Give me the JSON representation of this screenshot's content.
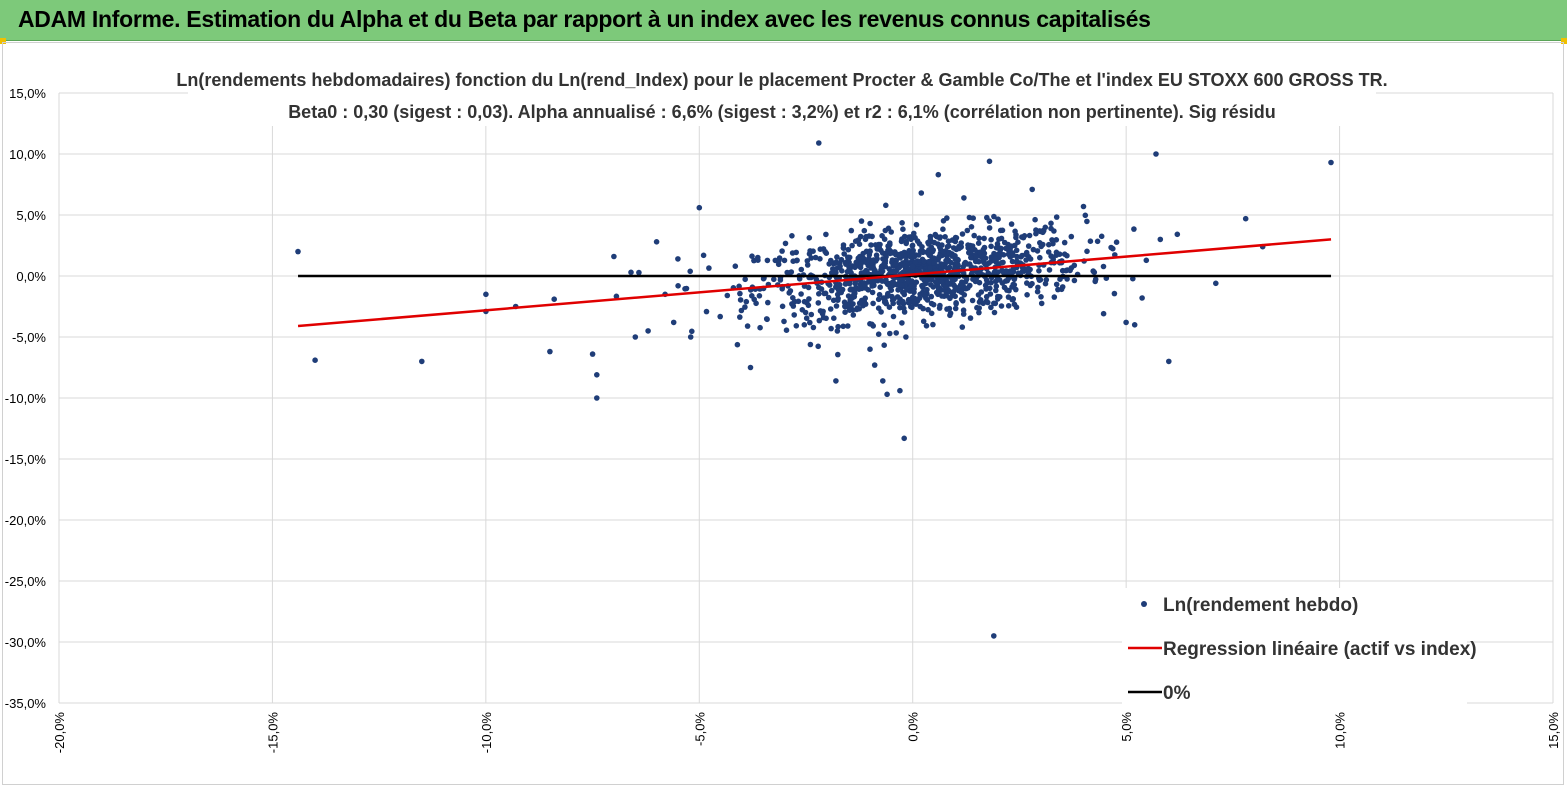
{
  "banner": {
    "title": "ADAM Informe. Estimation du Alpha et du Beta par rapport à un index avec les revenus connus capitalisés"
  },
  "colors": {
    "banner_bg": "#7dc97a",
    "scatter": "#1f3d78",
    "regression": "#e00000",
    "zero_line": "#000000",
    "grid": "#d9d9d9"
  },
  "chart_data": {
    "type": "scatter",
    "title_line1": "Ln(rendements hebdomadaires) fonction du Ln(rend_Index) pour le placement Procter & Gamble Co/The et l'index EU STOXX 600 GROSS TR.",
    "title_line2": "Beta0 : 0,30 (sigest : 0,03). Alpha annualisé : 6,6% (sigest : 3,2%) et r2 : 6,1% (corrélation non pertinente). Sig résidu",
    "xlim": [
      -0.2,
      0.15
    ],
    "ylim": [
      -0.35,
      0.15
    ],
    "x_ticks": [
      "-20,0%",
      "-15,0%",
      "-10,0%",
      "-5,0%",
      "0,0%",
      "5,0%",
      "10,0%",
      "15,0%"
    ],
    "y_ticks": [
      "15,0%",
      "10,0%",
      "5,0%",
      "0,0%",
      "-5,0%",
      "-10,0%",
      "-15,0%",
      "-20,0%",
      "-25,0%",
      "-30,0%",
      "-35,0%"
    ],
    "grid": true,
    "legend_position": "bottom-right",
    "legend": {
      "scatter": "Ln(rendement hebdo)",
      "regression": "Regression linéaire (actif vs index)",
      "zero": "0%"
    },
    "regression_line": {
      "x": [
        -0.144,
        0.098
      ],
      "y": [
        -0.041,
        0.03
      ]
    },
    "zero_line": {
      "x": [
        -0.144,
        0.098
      ],
      "y": [
        0.0,
        0.0
      ]
    },
    "outliers": {
      "x": [
        -0.144,
        -0.14,
        -0.115,
        -0.1,
        -0.1,
        -0.093,
        -0.085,
        -0.084,
        -0.075,
        -0.074,
        -0.074,
        -0.07,
        -0.066,
        -0.065,
        -0.062,
        -0.06,
        -0.058,
        -0.056,
        -0.055,
        -0.052,
        -0.05,
        -0.049,
        -0.038,
        -0.022,
        -0.018,
        -0.012,
        -0.01,
        -0.007,
        -0.006,
        -0.003,
        -0.002,
        0.002,
        0.006,
        0.012,
        0.018,
        0.019,
        0.028,
        0.04,
        0.05,
        0.052,
        0.057,
        0.058,
        0.06,
        0.071,
        0.078,
        0.082,
        0.098
      ],
      "y": [
        0.02,
        -0.069,
        -0.07,
        -0.015,
        -0.029,
        -0.025,
        -0.062,
        -0.019,
        -0.064,
        -0.081,
        -0.1,
        0.016,
        0.003,
        -0.05,
        -0.045,
        0.028,
        -0.015,
        -0.038,
        0.014,
        -0.05,
        0.056,
        0.017,
        -0.075,
        0.109,
        -0.086,
        0.045,
        -0.06,
        -0.086,
        -0.097,
        -0.094,
        -0.133,
        0.068,
        0.083,
        0.064,
        0.094,
        -0.295,
        0.071,
        0.057,
        -0.038,
        -0.04,
        0.1,
        0.03,
        -0.07,
        -0.006,
        0.047,
        0.024,
        0.093
      ]
    },
    "cluster": {
      "points": 1150,
      "x_center": 0.002,
      "y_center": 0.002,
      "x_spread": 0.019,
      "y_spread": 0.021,
      "beta": 0.3
    }
  }
}
